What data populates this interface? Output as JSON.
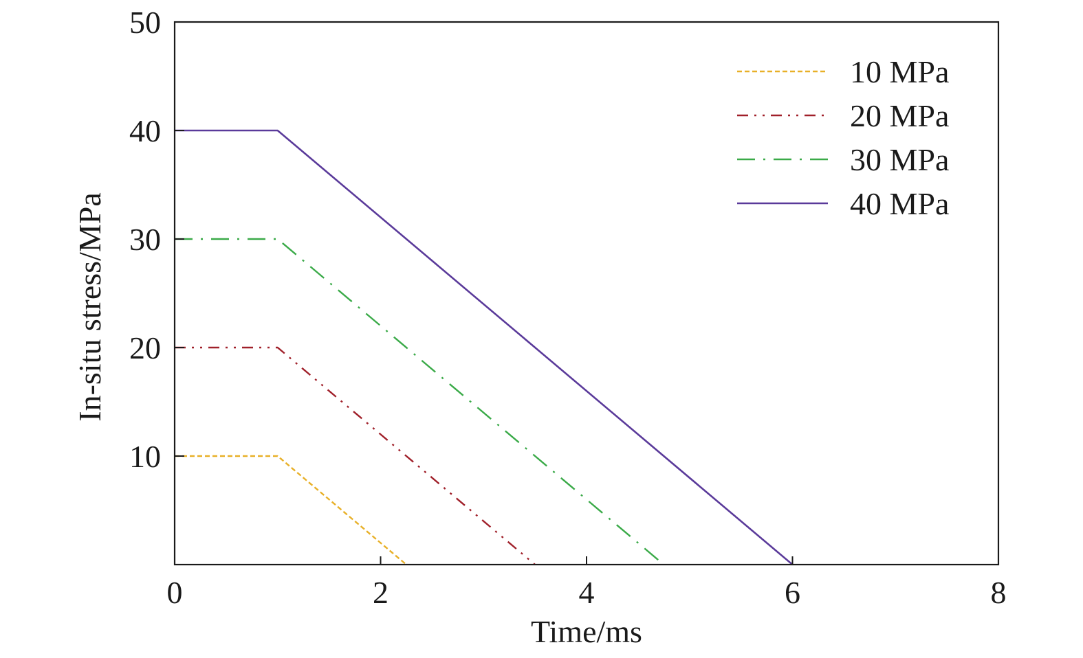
{
  "chart_data": {
    "type": "line",
    "xlabel": "Time/ms",
    "ylabel": "In-situ stress/MPa",
    "xlim": [
      0,
      8
    ],
    "ylim": [
      0,
      50
    ],
    "xticks": [
      0,
      2,
      4,
      6,
      8
    ],
    "yticks": [
      10,
      20,
      30,
      40,
      50
    ],
    "grid": false,
    "legend_position": "top-right",
    "series": [
      {
        "name": "10 MPa",
        "color": "#e8b028",
        "dash": "dashed",
        "x": [
          0,
          1,
          2.25
        ],
        "y": [
          10,
          10,
          0
        ]
      },
      {
        "name": "20 MPa",
        "color": "#a0202a",
        "dash": "dash-dot-dot",
        "x": [
          0,
          1,
          3.5
        ],
        "y": [
          20,
          20,
          0
        ]
      },
      {
        "name": "30 MPa",
        "color": "#3aaa48",
        "dash": "dash-dot",
        "x": [
          0,
          1,
          4.75
        ],
        "y": [
          30,
          30,
          0
        ]
      },
      {
        "name": "40 MPa",
        "color": "#5a3a9a",
        "dash": "solid",
        "x": [
          0,
          1,
          6
        ],
        "y": [
          40,
          40,
          0
        ]
      }
    ]
  }
}
